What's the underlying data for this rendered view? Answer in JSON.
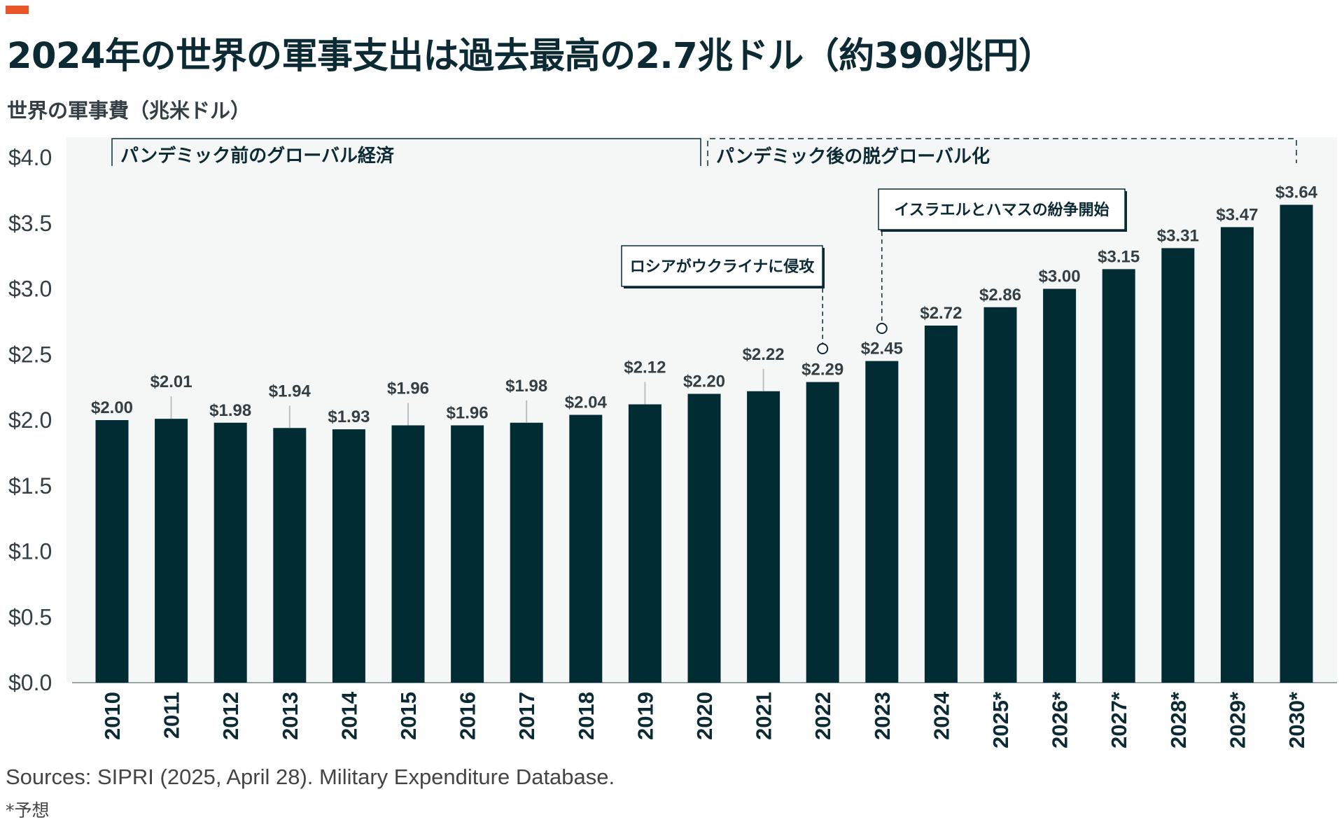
{
  "title": "2024年の世界の軍事支出は過去最高の2.7兆ドル（約390兆円）",
  "sources": "Sources: SIPRI (2025, April 28). Military Expenditure Database.",
  "footnote": "*予想",
  "colors": {
    "bar": "#022c33",
    "accent": "#e8562a",
    "plot_bg": "#f5f6f6"
  },
  "chart_data": {
    "type": "bar",
    "title": "2024年の世界の軍事支出は過去最高の2.7兆ドル（約390兆円）",
    "ylabel": "世界の軍事費（兆米ドル）",
    "xlabel": "",
    "ylim": [
      0,
      4.0
    ],
    "yticks": [
      "$0.0",
      "$0.5",
      "$1.0",
      "$1.5",
      "$2.0",
      "$2.5",
      "$3.0",
      "$3.5",
      "$4.0"
    ],
    "grid": false,
    "categories": [
      "2010",
      "2011",
      "2012",
      "2013",
      "2014",
      "2015",
      "2016",
      "2017",
      "2018",
      "2019",
      "2020",
      "2021",
      "2022",
      "2023",
      "2024",
      "2025*",
      "2026*",
      "2027*",
      "2028*",
      "2029*",
      "2030*"
    ],
    "values": [
      2.0,
      2.01,
      1.98,
      1.94,
      1.93,
      1.96,
      1.96,
      1.98,
      2.04,
      2.12,
      2.2,
      2.22,
      2.29,
      2.45,
      2.72,
      2.86,
      3.0,
      3.15,
      3.31,
      3.47,
      3.64
    ],
    "data_labels": [
      "$2.00",
      "$2.01",
      "$1.98",
      "$1.94",
      "$1.93",
      "$1.96",
      "$1.96",
      "$1.98",
      "$2.04",
      "$2.12",
      "$2.20",
      "$2.22",
      "$2.29",
      "$2.45",
      "$2.72",
      "$2.86",
      "$3.00",
      "$3.15",
      "$3.31",
      "$3.47",
      "$3.64"
    ],
    "periods": [
      {
        "label": "パンデミック前のグローバル経済",
        "from": "2010",
        "to": "2020"
      },
      {
        "label": "パンデミック後の脱グローバル化",
        "from": "2020",
        "to": "2030*"
      }
    ],
    "annotations": [
      {
        "text": "ロシアがウクライナに侵攻",
        "category": "2022"
      },
      {
        "text": "イスラエルとハマスの紛争開始",
        "category": "2023"
      }
    ]
  }
}
